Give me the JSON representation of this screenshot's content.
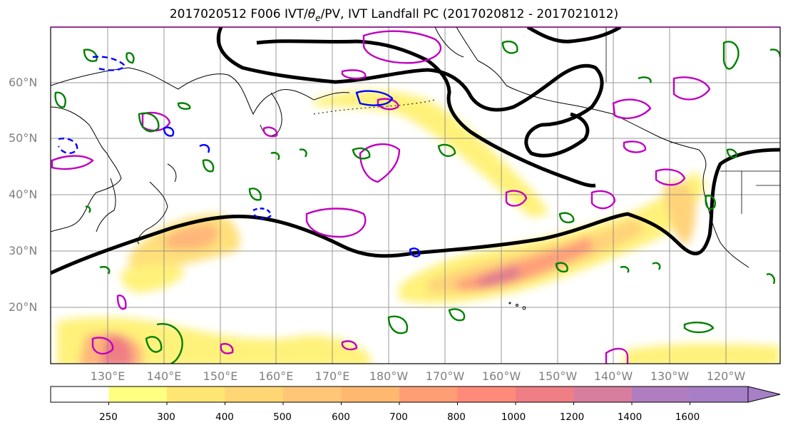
{
  "title": {
    "prefix": "2017020512 F006 IVT/",
    "theta": "θ",
    "theta_sub": "e",
    "suffix": "/PV, IVT Landfall PC (2017020812 - 2017021012)"
  },
  "lat_labels": [
    "60°N",
    "50°N",
    "40°N",
    "30°N",
    "20°N"
  ],
  "lon_labels": [
    "130°E",
    "140°E",
    "150°E",
    "160°E",
    "170°E",
    "180°W",
    "170°W",
    "160°W",
    "150°W",
    "140°W",
    "130°W",
    "120°W"
  ],
  "colorbar": {
    "ticks": [
      "250",
      "300",
      "400",
      "500",
      "600",
      "700",
      "800",
      "1000",
      "1200",
      "1400",
      "1600"
    ],
    "colors": [
      "#ffffff",
      "#ffff80",
      "#ffe673",
      "#ffd673",
      "#ffc675",
      "#ffb870",
      "#ff9e75",
      "#ff8a7a",
      "#f07e85",
      "#d77d9e",
      "#b07ec0",
      "#a67fc6"
    ]
  },
  "colors": {
    "theta_contour": "#000000",
    "pv_contour": "#c000c0",
    "positive_contour": "#008000",
    "negative_contour": "#0000ff"
  }
}
